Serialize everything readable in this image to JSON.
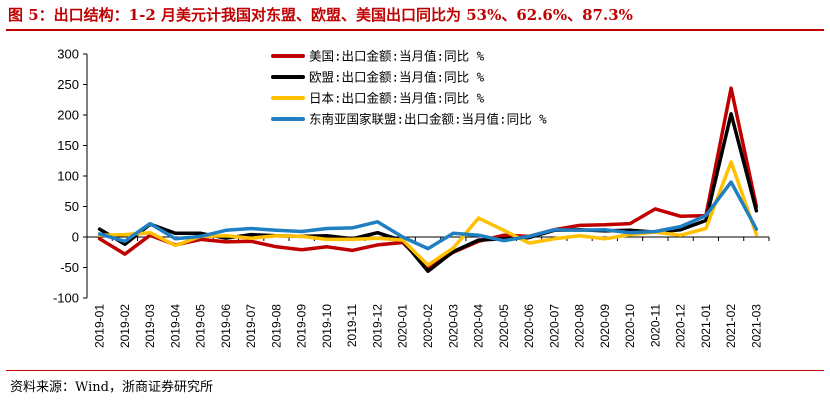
{
  "figure": {
    "title": "图 5：出口结构：1-2 月美元计我国对东盟、欧盟、美国出口同比为 53%、62.6%、87.3%",
    "source": "资料来源：Wind，浙商证券研究所"
  },
  "chart_data": {
    "type": "line",
    "categories": [
      "2019-01",
      "2019-02",
      "2019-03",
      "2019-04",
      "2019-05",
      "2019-06",
      "2019-07",
      "2019-08",
      "2019-09",
      "2019-10",
      "2019-11",
      "2019-12",
      "2020-01",
      "2020-02",
      "2020-03",
      "2020-04",
      "2020-05",
      "2020-06",
      "2020-07",
      "2020-08",
      "2020-09",
      "2020-10",
      "2020-11",
      "2020-12",
      "2021-01",
      "2021-02",
      "2021-03"
    ],
    "ylim": [
      -100,
      300
    ],
    "yticks": [
      -100,
      -50,
      0,
      50,
      100,
      150,
      200,
      250,
      300
    ],
    "ytick_labels": [
      "-100",
      "-50",
      "0",
      "50",
      "100",
      "150",
      "200",
      "250",
      "300"
    ],
    "legend_position": "top-left",
    "series": [
      {
        "name": "美国:出口金额:当月值:同比  %",
        "color": "#c00000",
        "values": [
          -3,
          -28,
          3,
          -13,
          -4,
          -8,
          -7,
          -16,
          -21,
          -16,
          -22,
          -13,
          -9,
          -50,
          -25,
          -7,
          3,
          1,
          12,
          19,
          20,
          22,
          46,
          34,
          35,
          244,
          50
        ]
      },
      {
        "name": "欧盟:出口金额:当月值:同比  %",
        "color": "#000000",
        "values": [
          13,
          -12,
          21,
          6,
          6,
          -2,
          4,
          2,
          1,
          2,
          -3,
          7,
          -6,
          -56,
          -24,
          -5,
          -3,
          -1,
          11,
          12,
          10,
          11,
          8,
          12,
          27,
          202,
          43
        ]
      },
      {
        "name": "日本:出口金额:当月值:同比  %",
        "color": "#ffc000",
        "values": [
          3,
          4,
          7,
          -14,
          1,
          2,
          -2,
          2,
          1,
          -4,
          -4,
          -2,
          -5,
          -46,
          -18,
          31,
          11,
          -10,
          -3,
          2,
          -3,
          4,
          8,
          3,
          14,
          123,
          4
        ]
      },
      {
        "name": "东南亚国家联盟:出口金额:当月值:同比  %",
        "color": "#1f7fc0",
        "values": [
          5,
          -7,
          22,
          -3,
          1,
          11,
          14,
          11,
          9,
          14,
          15,
          25,
          0,
          -19,
          6,
          3,
          -6,
          1,
          12,
          11,
          12,
          7,
          9,
          17,
          35,
          90,
          13
        ]
      }
    ]
  }
}
